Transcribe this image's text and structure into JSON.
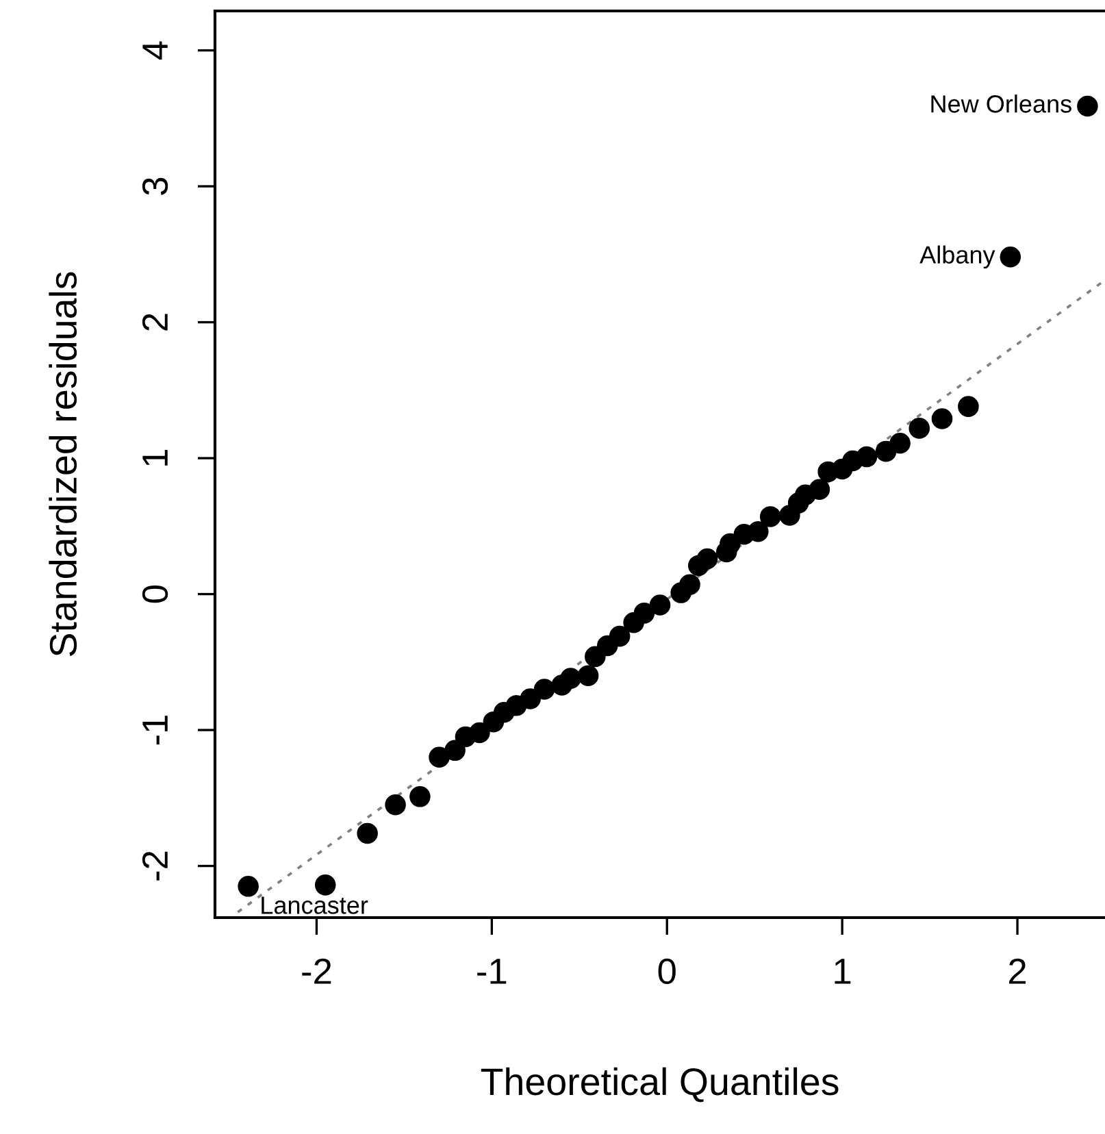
{
  "chart_data": {
    "type": "scatter",
    "xlabel": "Theoretical Quantiles",
    "ylabel": "Standardized residuals",
    "xlim": [
      -2.58,
      2.5
    ],
    "ylim": [
      -2.38,
      4.29
    ],
    "xticks": [
      -2,
      -1,
      0,
      1,
      2
    ],
    "yticks": [
      -2,
      -1,
      0,
      1,
      2,
      3,
      4
    ],
    "grid": false,
    "marker": "circle",
    "x": [
      -2.39,
      -1.95,
      -1.71,
      -1.55,
      -1.41,
      -1.3,
      -1.21,
      -1.15,
      -1.07,
      -0.99,
      -0.93,
      -0.86,
      -0.78,
      -0.7,
      -0.6,
      -0.55,
      -0.45,
      -0.41,
      -0.34,
      -0.27,
      -0.19,
      -0.13,
      -0.04,
      0.08,
      0.13,
      0.18,
      0.23,
      0.34,
      0.36,
      0.44,
      0.52,
      0.59,
      0.7,
      0.75,
      0.79,
      0.87,
      0.92,
      1.0,
      1.06,
      1.14,
      1.25,
      1.33,
      1.44,
      1.57,
      1.72,
      1.96,
      2.4
    ],
    "series": [
      {
        "color": "#000000",
        "values": [
          -2.15,
          -2.14,
          -1.76,
          -1.55,
          -1.49,
          -1.2,
          -1.15,
          -1.05,
          -1.02,
          -0.94,
          -0.87,
          -0.82,
          -0.77,
          -0.7,
          -0.67,
          -0.62,
          -0.6,
          -0.46,
          -0.38,
          -0.31,
          -0.21,
          -0.14,
          -0.08,
          0.01,
          0.07,
          0.21,
          0.26,
          0.31,
          0.37,
          0.44,
          0.46,
          0.57,
          0.58,
          0.67,
          0.73,
          0.77,
          0.9,
          0.92,
          0.98,
          1.01,
          1.05,
          1.11,
          1.22,
          1.29,
          1.38,
          2.48,
          3.59
        ]
      },
      {
        "type": "line",
        "color": "#808080",
        "line_style": "dotted",
        "marker": "none",
        "x": [
          -2.45,
          2.5
        ],
        "values": [
          -2.34,
          2.31
        ]
      }
    ],
    "annotations": [
      {
        "text": "New Orleans",
        "x": 2.4,
        "y": 3.59
      },
      {
        "text": "Albany",
        "x": 1.96,
        "y": 2.48
      },
      {
        "text": "Lancaster",
        "x": -2.39,
        "y": -2.15
      }
    ]
  }
}
